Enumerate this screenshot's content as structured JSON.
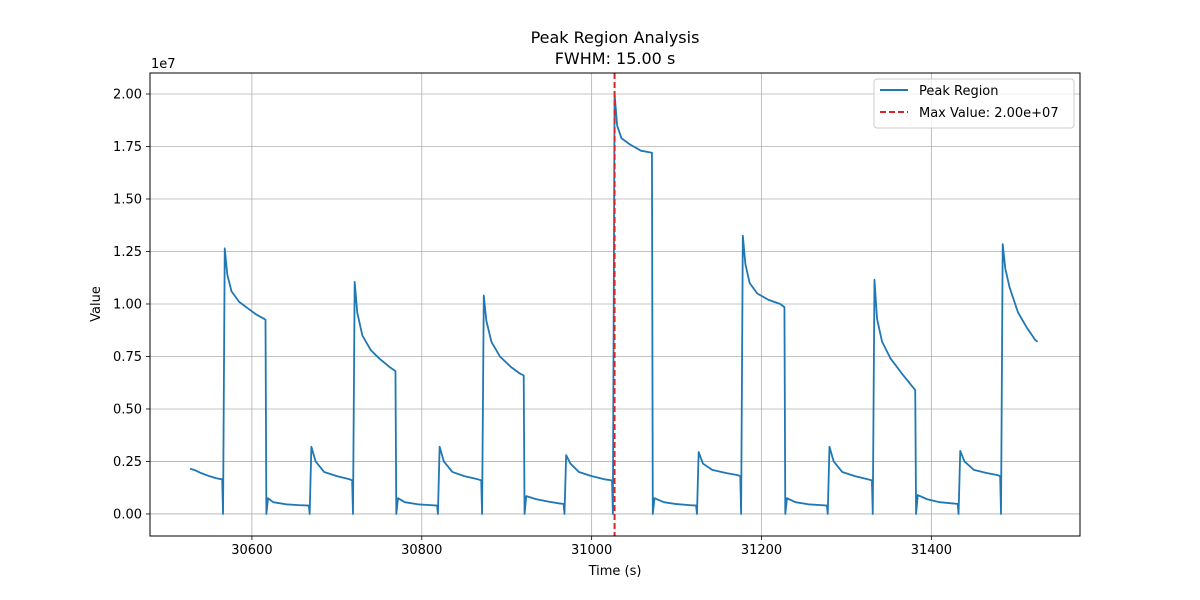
{
  "chart_data": {
    "type": "line",
    "title": "Peak Region Analysis",
    "subtitle": "FWHM: 15.00 s",
    "xlabel": "Time (s)",
    "ylabel": "Value",
    "y_offset_label": "1e7",
    "xlim": [
      30480,
      31575
    ],
    "ylim": [
      -1050000,
      21000000
    ],
    "x_ticks": [
      30600,
      30800,
      31000,
      31200,
      31400
    ],
    "x_tick_labels": [
      "30600",
      "30800",
      "31000",
      "31200",
      "31400"
    ],
    "y_ticks": [
      0,
      2500000,
      5000000,
      7500000,
      10000000,
      12500000,
      15000000,
      17500000,
      20000000
    ],
    "y_tick_labels": [
      "0.00",
      "0.25",
      "0.50",
      "0.75",
      "1.00",
      "1.25",
      "1.50",
      "1.75",
      "2.00"
    ],
    "grid": true,
    "legend_position": "top-right",
    "series": [
      {
        "name": "Peak Region",
        "color": "#1f77b4",
        "style": "solid",
        "points": [
          [
            30527,
            2150000
          ],
          [
            30532,
            2100000
          ],
          [
            30540,
            1950000
          ],
          [
            30550,
            1800000
          ],
          [
            30558,
            1700000
          ],
          [
            30565,
            1650000
          ],
          [
            30566,
            0
          ],
          [
            30568,
            12650000
          ],
          [
            30571,
            11400000
          ],
          [
            30576,
            10600000
          ],
          [
            30585,
            10100000
          ],
          [
            30595,
            9800000
          ],
          [
            30605,
            9500000
          ],
          [
            30614,
            9300000
          ],
          [
            30616,
            9250000
          ],
          [
            30617,
            0
          ],
          [
            30619,
            750000
          ],
          [
            30625,
            560000
          ],
          [
            30640,
            460000
          ],
          [
            30655,
            420000
          ],
          [
            30667,
            400000
          ],
          [
            30668,
            0
          ],
          [
            30670,
            3200000
          ],
          [
            30675,
            2500000
          ],
          [
            30685,
            2000000
          ],
          [
            30700,
            1800000
          ],
          [
            30715,
            1650000
          ],
          [
            30718,
            1600000
          ],
          [
            30719,
            0
          ],
          [
            30721,
            11050000
          ],
          [
            30724,
            9600000
          ],
          [
            30730,
            8500000
          ],
          [
            30740,
            7800000
          ],
          [
            30750,
            7400000
          ],
          [
            30762,
            7000000
          ],
          [
            30769,
            6800000
          ],
          [
            30770,
            0
          ],
          [
            30772,
            750000
          ],
          [
            30780,
            560000
          ],
          [
            30795,
            460000
          ],
          [
            30810,
            420000
          ],
          [
            30818,
            400000
          ],
          [
            30819,
            0
          ],
          [
            30821,
            3200000
          ],
          [
            30826,
            2500000
          ],
          [
            30836,
            2000000
          ],
          [
            30850,
            1800000
          ],
          [
            30866,
            1650000
          ],
          [
            30870,
            1600000
          ],
          [
            30871,
            0
          ],
          [
            30873,
            10400000
          ],
          [
            30876,
            9200000
          ],
          [
            30882,
            8200000
          ],
          [
            30892,
            7500000
          ],
          [
            30905,
            7000000
          ],
          [
            30915,
            6700000
          ],
          [
            30920,
            6600000
          ],
          [
            30921,
            0
          ],
          [
            30923,
            850000
          ],
          [
            30935,
            700000
          ],
          [
            30950,
            580000
          ],
          [
            30962,
            500000
          ],
          [
            30967,
            480000
          ],
          [
            30968,
            0
          ],
          [
            30970,
            2800000
          ],
          [
            30975,
            2400000
          ],
          [
            30985,
            2000000
          ],
          [
            31000,
            1800000
          ],
          [
            31015,
            1650000
          ],
          [
            31024,
            1600000
          ],
          [
            31025,
            0
          ],
          [
            31027,
            20000000
          ],
          [
            31030,
            18500000
          ],
          [
            31035,
            17900000
          ],
          [
            31045,
            17600000
          ],
          [
            31058,
            17300000
          ],
          [
            31071,
            17200000
          ],
          [
            31072,
            0
          ],
          [
            31074,
            750000
          ],
          [
            31085,
            560000
          ],
          [
            31100,
            470000
          ],
          [
            31115,
            420000
          ],
          [
            31123,
            400000
          ],
          [
            31124,
            0
          ],
          [
            31126,
            2950000
          ],
          [
            31131,
            2400000
          ],
          [
            31142,
            2100000
          ],
          [
            31158,
            1950000
          ],
          [
            31172,
            1850000
          ],
          [
            31175,
            1800000
          ],
          [
            31176,
            0
          ],
          [
            31178,
            13250000
          ],
          [
            31181,
            11900000
          ],
          [
            31186,
            11000000
          ],
          [
            31195,
            10500000
          ],
          [
            31208,
            10200000
          ],
          [
            31222,
            10000000
          ],
          [
            31227,
            9850000
          ],
          [
            31228,
            0
          ],
          [
            31230,
            750000
          ],
          [
            31240,
            560000
          ],
          [
            31255,
            460000
          ],
          [
            31270,
            420000
          ],
          [
            31277,
            400000
          ],
          [
            31278,
            0
          ],
          [
            31280,
            3200000
          ],
          [
            31285,
            2500000
          ],
          [
            31295,
            2000000
          ],
          [
            31310,
            1800000
          ],
          [
            31325,
            1650000
          ],
          [
            31330,
            1600000
          ],
          [
            31331,
            0
          ],
          [
            31333,
            11150000
          ],
          [
            31336,
            9300000
          ],
          [
            31342,
            8200000
          ],
          [
            31352,
            7400000
          ],
          [
            31365,
            6700000
          ],
          [
            31375,
            6200000
          ],
          [
            31381,
            5900000
          ],
          [
            31382,
            0
          ],
          [
            31384,
            900000
          ],
          [
            31395,
            700000
          ],
          [
            31410,
            560000
          ],
          [
            31425,
            500000
          ],
          [
            31431,
            480000
          ],
          [
            31432,
            0
          ],
          [
            31434,
            3000000
          ],
          [
            31439,
            2500000
          ],
          [
            31450,
            2100000
          ],
          [
            31465,
            1950000
          ],
          [
            31478,
            1850000
          ],
          [
            31481,
            1800000
          ],
          [
            31482,
            0
          ],
          [
            31484,
            12850000
          ],
          [
            31487,
            11700000
          ],
          [
            31492,
            10800000
          ],
          [
            31502,
            9600000
          ],
          [
            31512,
            8900000
          ],
          [
            31522,
            8300000
          ],
          [
            31525,
            8200000
          ]
        ]
      }
    ],
    "annotations": [
      {
        "type": "vline",
        "x": 31027,
        "name": "Max Value: 2.00e+07",
        "color": "#d62728",
        "style": "dashed"
      }
    ]
  }
}
